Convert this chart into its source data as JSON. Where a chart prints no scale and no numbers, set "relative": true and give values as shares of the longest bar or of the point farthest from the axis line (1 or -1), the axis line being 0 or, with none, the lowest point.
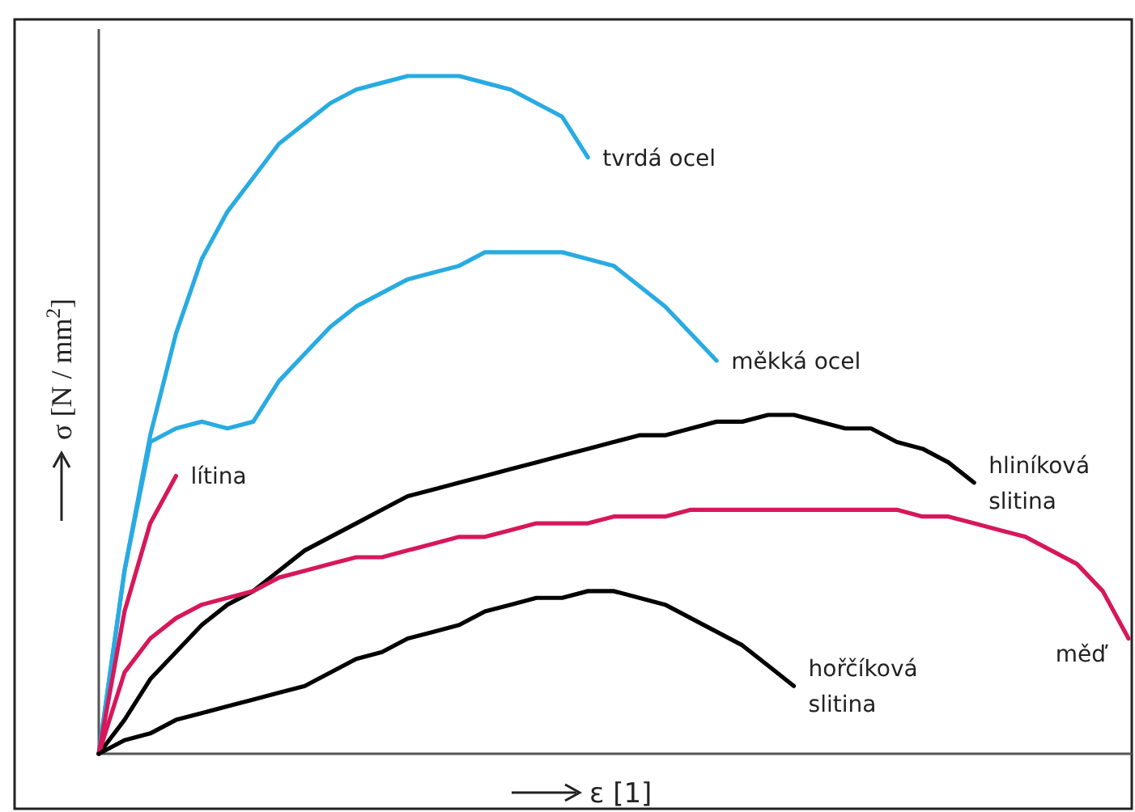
{
  "chart_data": {
    "type": "line",
    "relative": true,
    "xlabel": "ε [1]",
    "ylabel": "σ [N / mm$^{2}$]",
    "marker": "none",
    "line_style": "solid",
    "categories": [
      null,
      null,
      null,
      null,
      null,
      null,
      null,
      null,
      null,
      null,
      null,
      null,
      null,
      null,
      null,
      null,
      null,
      null,
      null,
      null,
      null,
      null,
      null,
      null,
      null,
      null,
      null,
      null,
      null,
      null,
      null,
      null,
      null,
      null,
      null,
      null,
      null,
      null,
      null,
      null,
      null
    ],
    "series": [
      {
        "name": "tvrdá ocel",
        "color": "#29abe2",
        "values": [
          0,
          0.27,
          0.47,
          0.62,
          0.73,
          0.8,
          0.85,
          0.9,
          0.93,
          0.96,
          0.98,
          0.99,
          1.0,
          1.0,
          1.0,
          0.99,
          0.98,
          0.96,
          0.94,
          0.88,
          null,
          null,
          null,
          null,
          null,
          null,
          null,
          null,
          null,
          null,
          null,
          null,
          null,
          null,
          null,
          null,
          null,
          null,
          null,
          null,
          null
        ]
      },
      {
        "name": "měkká ocel",
        "color": "#29abe2",
        "values": [
          0,
          0.27,
          0.46,
          0.48,
          0.49,
          0.48,
          0.49,
          0.55,
          0.59,
          0.63,
          0.66,
          0.68,
          0.7,
          0.71,
          0.72,
          0.74,
          0.74,
          0.74,
          0.74,
          0.73,
          0.72,
          0.69,
          0.66,
          0.62,
          0.58,
          null,
          null,
          null,
          null,
          null,
          null,
          null,
          null,
          null,
          null,
          null,
          null,
          null,
          null,
          null,
          null
        ]
      },
      {
        "name": "lítina",
        "color": "#d6185a",
        "values": [
          0,
          0.21,
          0.34,
          0.41,
          null,
          null,
          null,
          null,
          null,
          null,
          null,
          null,
          null,
          null,
          null,
          null,
          null,
          null,
          null,
          null,
          null,
          null,
          null,
          null,
          null,
          null,
          null,
          null,
          null,
          null,
          null,
          null,
          null,
          null,
          null,
          null,
          null,
          null,
          null,
          null,
          null
        ]
      },
      {
        "name": "hliníková\nslitina",
        "color": "#000000",
        "values": [
          0,
          0.05,
          0.11,
          0.15,
          0.19,
          0.22,
          0.24,
          0.27,
          0.3,
          0.32,
          0.34,
          0.36,
          0.38,
          0.39,
          0.4,
          0.41,
          0.42,
          0.43,
          0.44,
          0.45,
          0.46,
          0.47,
          0.47,
          0.48,
          0.49,
          0.49,
          0.5,
          0.5,
          0.49,
          0.48,
          0.48,
          0.46,
          0.45,
          0.43,
          0.4,
          null,
          null,
          null,
          null,
          null,
          null
        ]
      },
      {
        "name": "měď",
        "color": "#d6185a",
        "values": [
          0,
          0.12,
          0.17,
          0.2,
          0.22,
          0.23,
          0.24,
          0.26,
          0.27,
          0.28,
          0.29,
          0.29,
          0.3,
          0.31,
          0.32,
          0.32,
          0.33,
          0.34,
          0.34,
          0.34,
          0.35,
          0.35,
          0.35,
          0.36,
          0.36,
          0.36,
          0.36,
          0.36,
          0.36,
          0.36,
          0.36,
          0.36,
          0.35,
          0.35,
          0.34,
          0.33,
          0.32,
          0.3,
          0.28,
          0.24,
          0.17
        ]
      },
      {
        "name": "hořčíková\nslitina",
        "color": "#000000",
        "values": [
          0,
          0.02,
          0.03,
          0.05,
          0.06,
          0.07,
          0.08,
          0.09,
          0.1,
          0.12,
          0.14,
          0.15,
          0.17,
          0.18,
          0.19,
          0.21,
          0.22,
          0.23,
          0.23,
          0.24,
          0.24,
          0.23,
          0.22,
          0.2,
          0.18,
          0.16,
          0.13,
          0.1,
          null,
          null,
          null,
          null,
          null,
          null,
          null,
          null,
          null,
          null,
          null,
          null,
          null
        ]
      }
    ]
  }
}
